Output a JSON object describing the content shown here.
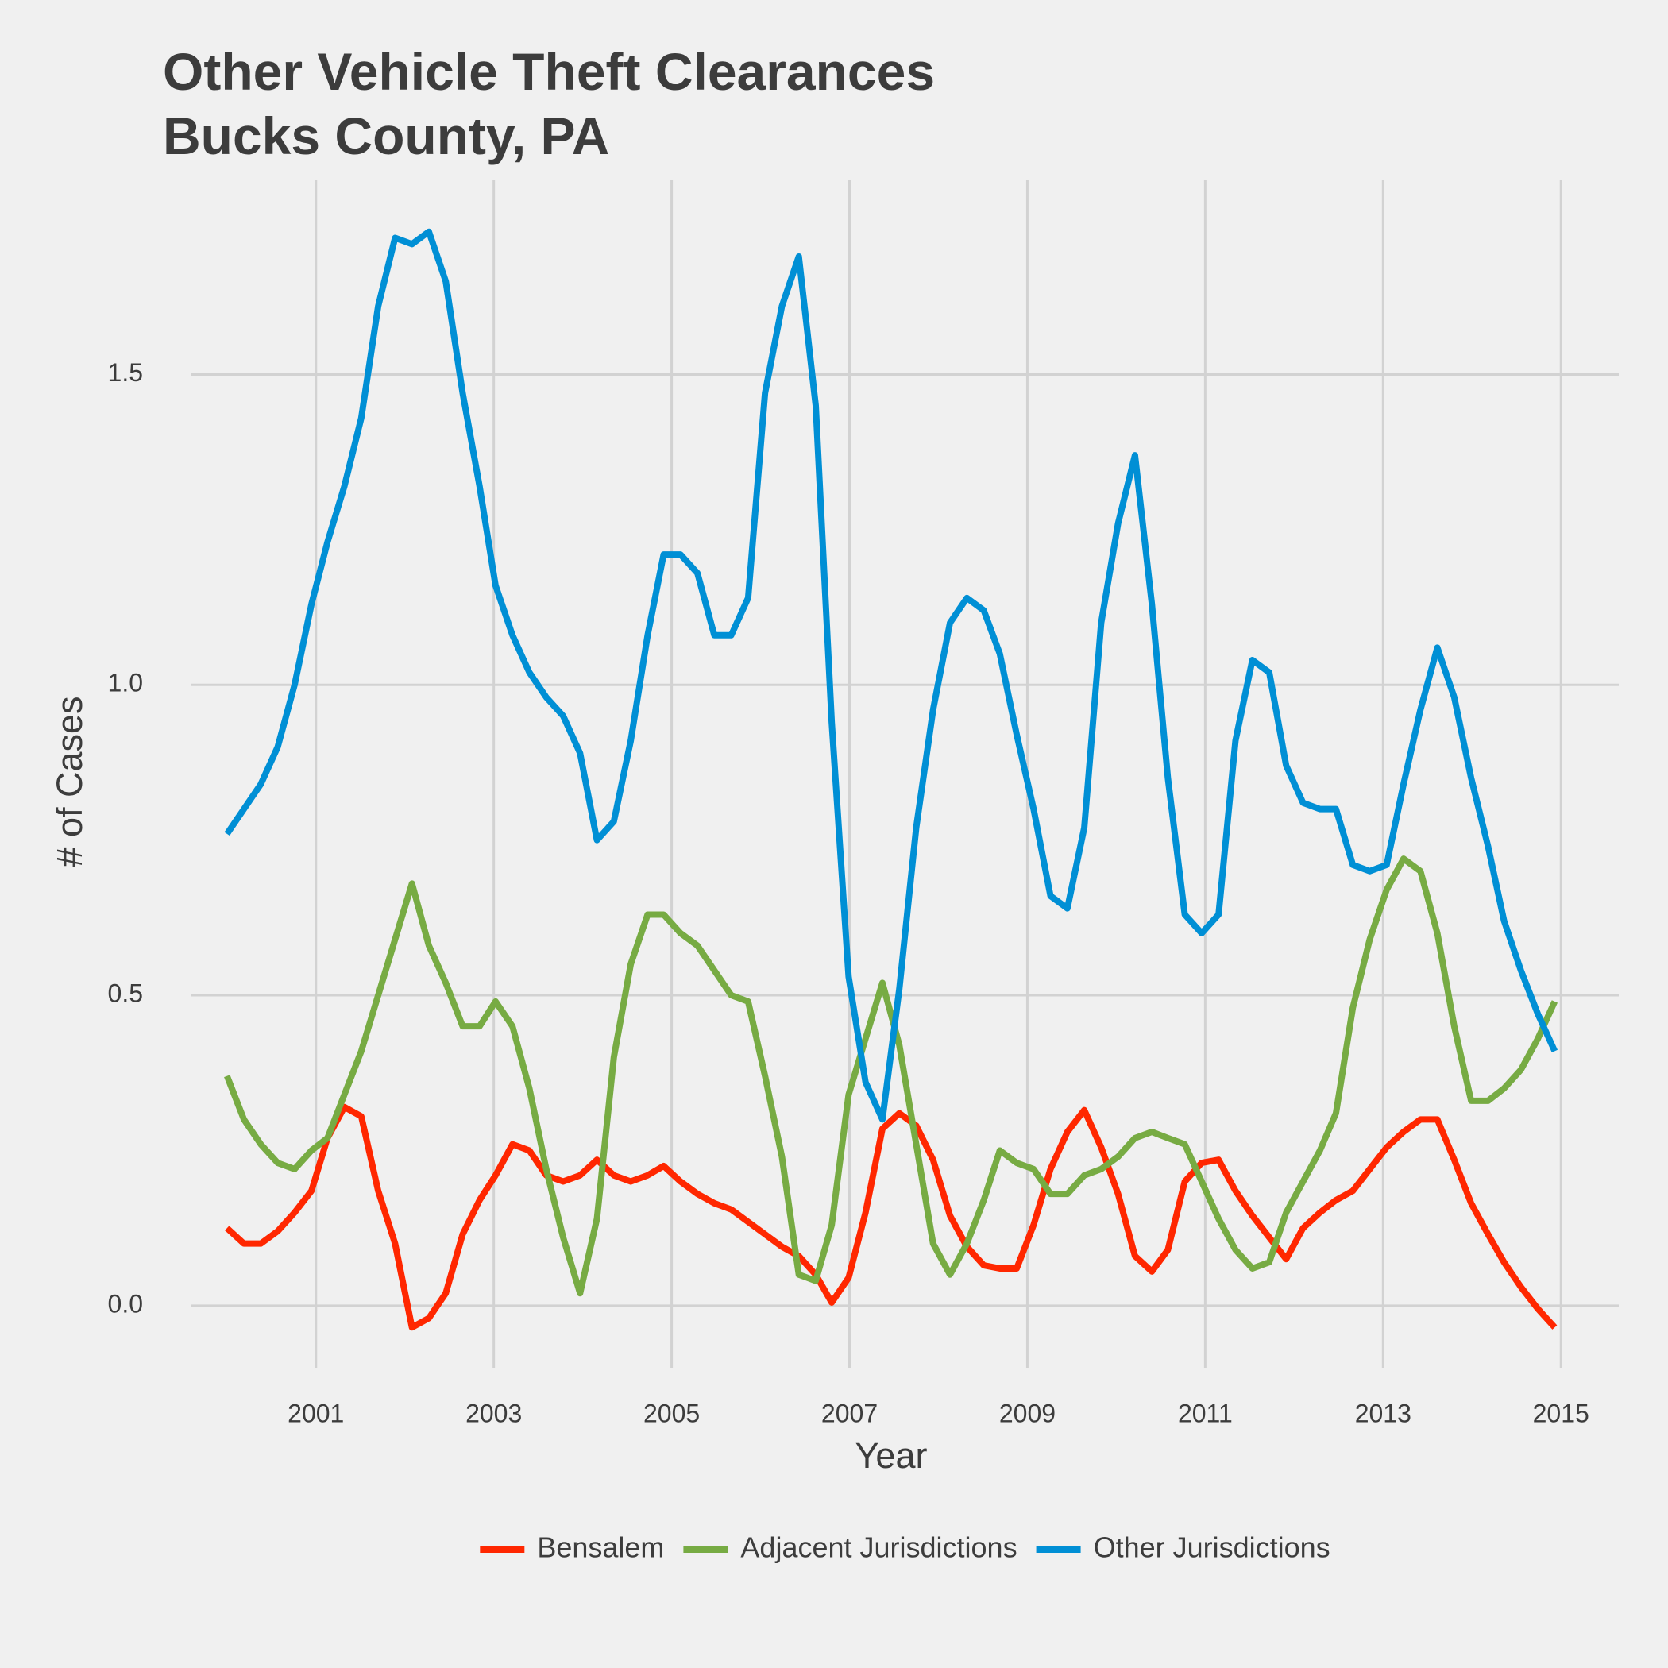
{
  "chart_data": {
    "type": "line",
    "title": [
      "Other Vehicle Theft Clearances",
      "Bucks County, PA"
    ],
    "xlabel": "Year",
    "ylabel": "# of Cases",
    "x": [
      2000,
      2000.19,
      2000.38,
      2000.57,
      2000.76,
      2000.95,
      2001.13,
      2001.32,
      2001.51,
      2001.7,
      2001.89,
      2002.08,
      2002.27,
      2002.46,
      2002.65,
      2002.84,
      2003.02,
      2003.21,
      2003.4,
      2003.59,
      2003.78,
      2003.97,
      2004.16,
      2004.35,
      2004.54,
      2004.73,
      2004.91,
      2005.1,
      2005.29,
      2005.48,
      2005.67,
      2005.86,
      2006.05,
      2006.24,
      2006.43,
      2006.62,
      2006.8,
      2006.99,
      2007.18,
      2007.37,
      2007.56,
      2007.75,
      2007.94,
      2008.13,
      2008.32,
      2008.51,
      2008.69,
      2008.88,
      2009.07,
      2009.26,
      2009.45,
      2009.64,
      2009.83,
      2010.02,
      2010.21,
      2010.4,
      2010.58,
      2010.77,
      2010.96,
      2011.15,
      2011.34,
      2011.53,
      2011.72,
      2011.91,
      2012.1,
      2012.29,
      2012.47,
      2012.66,
      2012.85,
      2013.04,
      2013.23,
      2013.42,
      2013.61,
      2013.8,
      2013.99,
      2014.18,
      2014.36,
      2014.55,
      2014.74,
      2014.93
    ],
    "series": [
      {
        "name": "Bensalem",
        "color": "#ff2700",
        "values": [
          0.125,
          0.1,
          0.1,
          0.12,
          0.15,
          0.185,
          0.27,
          0.32,
          0.305,
          0.185,
          0.1,
          -0.035,
          -0.02,
          0.02,
          0.115,
          0.17,
          0.21,
          0.26,
          0.25,
          0.21,
          0.2,
          0.21,
          0.235,
          0.21,
          0.2,
          0.21,
          0.225,
          0.2,
          0.18,
          0.165,
          0.155,
          0.135,
          0.115,
          0.095,
          0.08,
          0.05,
          0.005,
          0.045,
          0.15,
          0.285,
          0.31,
          0.29,
          0.235,
          0.145,
          0.095,
          0.065,
          0.06,
          0.06,
          0.13,
          0.22,
          0.28,
          0.315,
          0.255,
          0.18,
          0.08,
          0.055,
          0.09,
          0.2,
          0.23,
          0.235,
          0.185,
          0.145,
          0.11,
          0.075,
          0.125,
          0.15,
          0.17,
          0.185,
          0.22,
          0.255,
          0.28,
          0.3,
          0.3,
          0.235,
          0.165,
          0.115,
          0.07,
          0.03,
          -0.005,
          -0.035
        ]
      },
      {
        "name": "Adjacent Jurisdictions",
        "color": "#77ab43",
        "values": [
          0.37,
          0.3,
          0.26,
          0.23,
          0.22,
          0.25,
          0.27,
          0.34,
          0.41,
          0.5,
          0.59,
          0.68,
          0.58,
          0.52,
          0.45,
          0.45,
          0.49,
          0.45,
          0.35,
          0.22,
          0.11,
          0.02,
          0.14,
          0.4,
          0.55,
          0.63,
          0.63,
          0.6,
          0.58,
          0.54,
          0.5,
          0.49,
          0.37,
          0.24,
          0.05,
          0.04,
          0.13,
          0.34,
          0.43,
          0.52,
          0.42,
          0.26,
          0.1,
          0.05,
          0.1,
          0.17,
          0.25,
          0.23,
          0.22,
          0.18,
          0.18,
          0.21,
          0.22,
          0.24,
          0.27,
          0.28,
          0.27,
          0.26,
          0.2,
          0.14,
          0.09,
          0.06,
          0.07,
          0.15,
          0.2,
          0.25,
          0.31,
          0.48,
          0.59,
          0.67,
          0.72,
          0.7,
          0.6,
          0.45,
          0.33,
          0.33,
          0.35,
          0.38,
          0.43,
          0.49
        ]
      },
      {
        "name": "Other Jurisdictions",
        "color": "#008fd5",
        "values": [
          0.76,
          0.8,
          0.84,
          0.9,
          1.0,
          1.13,
          1.23,
          1.32,
          1.43,
          1.61,
          1.72,
          1.71,
          1.73,
          1.65,
          1.47,
          1.32,
          1.16,
          1.08,
          1.02,
          0.98,
          0.95,
          0.89,
          0.75,
          0.78,
          0.91,
          1.08,
          1.21,
          1.21,
          1.18,
          1.08,
          1.08,
          1.14,
          1.47,
          1.61,
          1.69,
          1.45,
          0.94,
          0.53,
          0.36,
          0.3,
          0.51,
          0.77,
          0.96,
          1.1,
          1.14,
          1.12,
          1.05,
          0.92,
          0.8,
          0.66,
          0.64,
          0.77,
          1.1,
          1.26,
          1.37,
          1.13,
          0.85,
          0.63,
          0.6,
          0.63,
          0.91,
          1.04,
          1.02,
          0.87,
          0.81,
          0.8,
          0.8,
          0.71,
          0.7,
          0.71,
          0.84,
          0.96,
          1.06,
          0.98,
          0.85,
          0.74,
          0.62,
          0.54,
          0.47,
          0.41
        ]
      }
    ],
    "xlim": [
      1999.6,
      2015.65
    ],
    "xticks": [
      2001,
      2003,
      2005,
      2007,
      2009,
      2011,
      2013,
      2015
    ],
    "ylim": [
      -0.1,
      1.8
    ],
    "yticks": [
      {
        "value": 0,
        "label": "0.0"
      },
      0.5,
      {
        "value": 1,
        "label": "1.0"
      },
      1.5
    ],
    "grid": true,
    "legend": "bottom"
  }
}
